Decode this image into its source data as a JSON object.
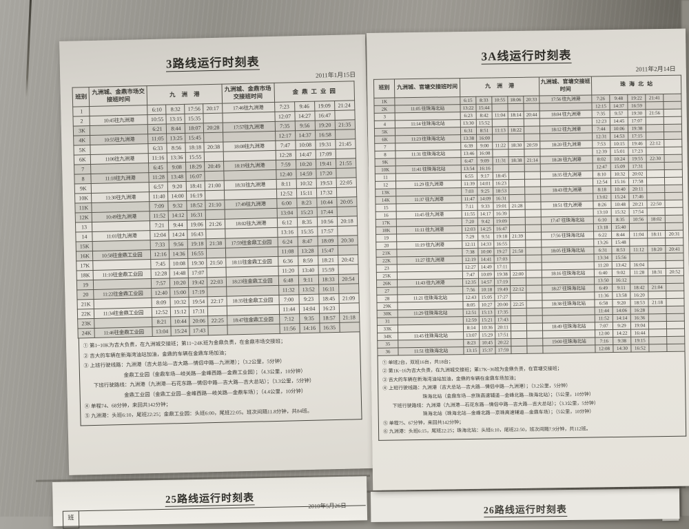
{
  "left_sheet": {
    "title": "3路线运行时刻表",
    "date": "2011年1月15日",
    "header": {
      "class_col": "班别",
      "transfer1": "九洲城、金鼎市场交接班时间",
      "group1": "九洲港",
      "transfer2": "九洲城、金鼎市场交接班时间",
      "group2": "金鼎工业园"
    },
    "rows": [
      [
        "1",
        "",
        "6:10",
        "8:32",
        "17:56",
        "20:17",
        "17:46往九洲港",
        "7:23",
        "9:46",
        "19:09",
        "21:24"
      ],
      [
        "2",
        "10:45往九洲港",
        "10:55",
        "13:15",
        "15:35",
        "",
        "",
        "12:07",
        "14:27",
        "16:47",
        ""
      ],
      [
        "3K",
        "",
        "6:21",
        "8:44",
        "18:07",
        "20:28",
        "17:57往九洲港",
        "7:35",
        "9:56",
        "19:20",
        "21:35"
      ],
      [
        "4K",
        "10:55往九洲港",
        "11:05",
        "13:25",
        "15:45",
        "",
        "",
        "12:17",
        "14:37",
        "16:58",
        ""
      ],
      [
        "5K",
        "",
        "6:33",
        "8:56",
        "18:18",
        "20:38",
        "18:08往九洲港",
        "7:47",
        "10:08",
        "19:31",
        "21:45"
      ],
      [
        "6K",
        "1106往九洲港",
        "11:16",
        "13:36",
        "15:55",
        "",
        "",
        "12:28",
        "14:47",
        "17:09",
        ""
      ],
      [
        "7",
        "",
        "6:45",
        "9:08",
        "18:29",
        "20:49",
        "18:19往九洲港",
        "7:59",
        "10:20",
        "19:41",
        "21:55"
      ],
      [
        "8",
        "11:18往九洲港",
        "11:28",
        "13:48",
        "16:07",
        "",
        "",
        "12:40",
        "14:59",
        "17:20",
        ""
      ],
      [
        "9K",
        "",
        "6:57",
        "9:20",
        "18:41",
        "21:00",
        "18:31往九洲港",
        "8:11",
        "10:32",
        "19:53",
        "22:05"
      ],
      [
        "10K",
        "11:30往九洲港",
        "11:40",
        "14:00",
        "16:19",
        "",
        "",
        "12:52",
        "15:11",
        "17:32",
        ""
      ],
      [
        "11K",
        "",
        "7:09",
        "9:32",
        "18:52",
        "21:10",
        "17:49往九洲港",
        "6:00",
        "8:23",
        "10:44",
        "20:05"
      ],
      [
        "12K",
        "10:49往九洲港",
        "11:52",
        "14:12",
        "16:31",
        "",
        "",
        "13:04",
        "15:23",
        "17:44",
        ""
      ],
      [
        "13",
        "",
        "7:21",
        "9:44",
        "19:06",
        "21:26",
        "18:02往九洲港",
        "6:12",
        "8:35",
        "10:56",
        "20:18"
      ],
      [
        "14",
        "11:01往九洲港",
        "12:04",
        "14:24",
        "16:43",
        "",
        "",
        "13:16",
        "15:35",
        "17:57",
        ""
      ],
      [
        "15K",
        "",
        "7:33",
        "9:56",
        "19:18",
        "21:38",
        "17:59往金鼎工业园",
        "6:24",
        "8:47",
        "18:09",
        "20:30"
      ],
      [
        "16K",
        "10:58往金鼎工业园",
        "12:16",
        "14:36",
        "16:55",
        "",
        "",
        "11:08",
        "13:28",
        "15:47",
        ""
      ],
      [
        "17K",
        "",
        "7:45",
        "10:08",
        "19:30",
        "21:50",
        "18:11往金鼎工业园",
        "6:36",
        "8:59",
        "18:21",
        "20:42"
      ],
      [
        "18K",
        "11:10往金鼎工业园",
        "12:28",
        "14:48",
        "17:07",
        "",
        "",
        "11:20",
        "13:40",
        "15:59",
        ""
      ],
      [
        "19",
        "",
        "7:57",
        "10:20",
        "19:42",
        "22:03",
        "18:23往金鼎工业园",
        "6:48",
        "9:11",
        "18:33",
        "20:54"
      ],
      [
        "20",
        "11:22往金鼎工业园",
        "12:40",
        "15:00",
        "17:19",
        "",
        "",
        "11:32",
        "13:52",
        "16:11",
        ""
      ],
      [
        "21K",
        "",
        "8:09",
        "10:32",
        "19:54",
        "22:17",
        "18:35往金鼎工业园",
        "7:00",
        "9:23",
        "18:45",
        "21:09"
      ],
      [
        "22K",
        "11:34往金鼎工业园",
        "12:52",
        "15:12",
        "17:31",
        "",
        "",
        "11:44",
        "14:04",
        "16:23",
        ""
      ],
      [
        "23K",
        "",
        "8:21",
        "10:44",
        "20:06",
        "22:25",
        "18:47往金鼎工业园",
        "7:12",
        "9:35",
        "18:57",
        "21:18"
      ],
      [
        "24K",
        "11:46往金鼎工业园",
        "13:04",
        "15:24",
        "17:43",
        "",
        "",
        "11:56",
        "14:16",
        "16:35",
        ""
      ]
    ],
    "notes": [
      {
        "indent": 0,
        "text": "① 第1~10K为吉大负责，在九洲城交接班；第11~24K班为金鼎负责，在金鼎市场交接班；"
      },
      {
        "indent": 0,
        "text": "② 吉大的车辆在新海湾油站加油，金鼎的车辆在金鼎车场加油；"
      },
      {
        "indent": 0,
        "text": "③ 上班行驶线路：九洲港（吉大总站—吉大路—情侣中路—九洲港）；（3.2公里，5分钟）"
      },
      {
        "indent": 2,
        "text": "金鼎工业园（金鼎车场—岐关路—金峰西路—金鼎工业园）；（4.3公里，10分钟）"
      },
      {
        "indent": 1,
        "text": "下班行驶路线：九洲港（九洲港—石花东路—情侣中路—吉大路—吉大总站）；（3.3公里，5分钟）"
      },
      {
        "indent": 2,
        "text": "金鼎工业园（金鼎工业园—金峰西路—岐关路—金鼎车场）；（4.4公里，10分钟）"
      },
      {
        "indent": 0,
        "text": "④ 单程74、68分钟，来回共142分钟；"
      },
      {
        "indent": 0,
        "text": "⑤ 九洲港：头班6:10，尾班22:25；金鼎工业园：头班6:00，尾班22:05。班次间隔11.8分钟，共84班。"
      }
    ]
  },
  "right_sheet": {
    "title": "3A线运行时刻表",
    "date": "2011年2月14日",
    "header": {
      "class_col": "班别",
      "transfer1": "九洲城、官塘交接班时间",
      "group1": "九洲港",
      "transfer2": "九洲城、官塘交接班时间",
      "group2": "珠海北站"
    },
    "rows": [
      [
        "1K",
        "",
        "6:15",
        "8:33",
        "10:55",
        "18:06",
        "20:33",
        "17:56 往九洲港",
        "7:26",
        "9:48",
        "19:22",
        "21:41",
        ""
      ],
      [
        "2K",
        "11:05 往珠海北站",
        "13:22",
        "15:44",
        "",
        "",
        "",
        "",
        "12:15",
        "14:37",
        "16:59",
        "",
        ""
      ],
      [
        "3",
        "",
        "6:23",
        "8:42",
        "11:04",
        "18:14",
        "20:44",
        "18:04 往九洲港",
        "7:35",
        "9:57",
        "19:30",
        "21:56",
        ""
      ],
      [
        "4",
        "11:14 往珠海北站",
        "13:30",
        "15:52",
        "",
        "",
        "",
        "",
        "12:23",
        "14:45",
        "17:07",
        "",
        ""
      ],
      [
        "5K",
        "",
        "6:31",
        "8:51",
        "11:13",
        "18:22",
        "",
        "18:12 往九洲港",
        "7:44",
        "10:06",
        "19:38",
        "",
        ""
      ],
      [
        "6K",
        "11:23 往珠海北站",
        "13:38",
        "16:00",
        "",
        "",
        "",
        "",
        "12:31",
        "14:53",
        "17:15",
        "",
        ""
      ],
      [
        "7",
        "",
        "6:39",
        "9:00",
        "11:22",
        "18:30",
        "20:59",
        "18:20 往九洲港",
        "7:53",
        "10:15",
        "19:46",
        "22:12",
        ""
      ],
      [
        "8",
        "11:31 往珠海北站",
        "13:46",
        "16:08",
        "",
        "",
        "",
        "",
        "12:39",
        "15:01",
        "17:23",
        "",
        ""
      ],
      [
        "9K",
        "",
        "6:47",
        "9:09",
        "11:31",
        "18:38",
        "21:14",
        "18:28 往九洲港",
        "8:02",
        "10:24",
        "19:55",
        "22:30",
        ""
      ],
      [
        "10K",
        "11:41 往珠海北站",
        "13:54",
        "16:16",
        "",
        "",
        "",
        "",
        "12:47",
        "15:09",
        "17:31",
        "",
        ""
      ],
      [
        "11",
        "",
        "6:55",
        "9:17",
        "18:45",
        "",
        "",
        "18:35 往九洲港",
        "8:10",
        "10:32",
        "20:02",
        "",
        ""
      ],
      [
        "12",
        "11:29 往九洲港",
        "11:39",
        "14:01",
        "16:23",
        "",
        "",
        "",
        "12:54",
        "15:16",
        "17:58",
        "",
        ""
      ],
      [
        "13K",
        "",
        "7:03",
        "9:25",
        "18:53",
        "",
        "",
        "18:43 往九洲港",
        "8:18",
        "10:40",
        "20:11",
        "",
        ""
      ],
      [
        "14K",
        "11:37 往九洲港",
        "11:47",
        "14:09",
        "16:31",
        "",
        "",
        "",
        "13:02",
        "15:24",
        "17:46",
        "",
        ""
      ],
      [
        "15",
        "",
        "7:11",
        "9:33",
        "19:01",
        "21:28",
        "",
        "18:51 往九洲港",
        "8:26",
        "10:48",
        "20:21",
        "22:50",
        ""
      ],
      [
        "16",
        "11:45 往九洲港",
        "11:55",
        "14:17",
        "16:39",
        "",
        "",
        "",
        "13:10",
        "15:32",
        "17:54",
        "",
        ""
      ],
      [
        "17K",
        "",
        "7:20",
        "9:42",
        "19:09",
        "",
        "",
        "17:47 往珠海北站",
        "6:10",
        "8:35",
        "10:56",
        "18:02",
        ""
      ],
      [
        "18K",
        "11:11 往九洲港",
        "12:03",
        "14:25",
        "16:47",
        "",
        "",
        "",
        "13:18",
        "15:40",
        "",
        "",
        ""
      ],
      [
        "19",
        "",
        "7:29",
        "9:51",
        "19:18",
        "21:39",
        "",
        "17:56 往珠海北站",
        "6:22",
        "8:44",
        "11:04",
        "18:11",
        "20:31"
      ],
      [
        "20",
        "11:19 往九洲港",
        "12:11",
        "14:33",
        "16:55",
        "",
        "",
        "",
        "13:26",
        "15:48",
        "",
        "",
        ""
      ],
      [
        "21K",
        "",
        "7:38",
        "10:00",
        "19:27",
        "21:50",
        "",
        "18:05 往珠海北站",
        "6:31",
        "8:53",
        "11:12",
        "18:20",
        "20:41"
      ],
      [
        "22K",
        "11:27 往九洲港",
        "12:19",
        "14:41",
        "17:03",
        "",
        "",
        "",
        "13:34",
        "15:56",
        "",
        "",
        ""
      ],
      [
        "23",
        "",
        "12:27",
        "14:49",
        "17:11",
        "",
        "",
        "",
        "11:20",
        "13:42",
        "16:04",
        "",
        ""
      ],
      [
        "25K",
        "",
        "7:47",
        "10:09",
        "19:38",
        "22:00",
        "",
        "18:16 往珠海北站",
        "6:40",
        "9:02",
        "11:28",
        "18:31",
        "20:52"
      ],
      [
        "26K",
        "11:43 往九洲港",
        "12:35",
        "14:57",
        "17:19",
        "",
        "",
        "",
        "13:50",
        "16:12",
        "",
        "",
        ""
      ],
      [
        "27",
        "",
        "7:56",
        "10:18",
        "19:49",
        "22:12",
        "",
        "18:27 往珠海北站",
        "6:49",
        "9:11",
        "18:42",
        "21:04",
        ""
      ],
      [
        "28",
        "11:21 往珠海北站",
        "12:43",
        "15:05",
        "17:27",
        "",
        "",
        "",
        "11:36",
        "13:58",
        "16:20",
        "",
        ""
      ],
      [
        "29K",
        "",
        "8:05",
        "10:27",
        "20:00",
        "22:25",
        "",
        "18:38 往珠海北站",
        "6:58",
        "9:20",
        "18:53",
        "21:18",
        ""
      ],
      [
        "30K",
        "11:29 往珠海北站",
        "12:51",
        "15:13",
        "17:35",
        "",
        "",
        "",
        "11:44",
        "14:06",
        "16:28",
        "",
        ""
      ],
      [
        "31",
        "",
        "12:59",
        "15:21",
        "17:43",
        "",
        "",
        "",
        "11:52",
        "14:14",
        "16:36",
        "",
        ""
      ],
      [
        "33K",
        "",
        "8:14",
        "10:36",
        "20:11",
        "",
        "",
        "18:49 往珠海北站",
        "7:07",
        "9:29",
        "19:04",
        "",
        ""
      ],
      [
        "34K",
        "11:45 往珠海北站",
        "13:07",
        "15:29",
        "17:51",
        "",
        "",
        "",
        "12:00",
        "14:22",
        "16:44",
        "",
        ""
      ],
      [
        "35",
        "",
        "8:23",
        "10:45",
        "20:22",
        "",
        "",
        "19:00 往珠海北站",
        "7:16",
        "9:38",
        "19:15",
        "",
        ""
      ],
      [
        "36",
        "11:51 往珠海北站",
        "13:15",
        "15:37",
        "17:59",
        "",
        "",
        "",
        "12:08",
        "14:30",
        "16:52",
        "",
        ""
      ]
    ],
    "notes": [
      {
        "indent": 0,
        "text": "① 单班2台，双班16台，共18台；"
      },
      {
        "indent": 0,
        "text": "② 第1K~16为吉大负责，在九洲城交接班；第17K~36班为金鼎负责，在官塘交接班；"
      },
      {
        "indent": 0,
        "text": "③ 吉大的车辆在新海湾油站加油，金鼎的车辆在金鼎车场加油；"
      },
      {
        "indent": 0,
        "text": "④ 上班行驶线路：九洲港（吉大总站—吉大路—情侣中路—九洲港）；（3.2公里，5分钟）"
      },
      {
        "indent": 2,
        "text": "珠海北站（金鼎车场—京珠高速辅道—金峰北路—珠海北站）；（5公里，10分钟）"
      },
      {
        "indent": 1,
        "text": "下班行驶路线：九洲港（九洲港—石花东路—情侣中路—吉大路—吉大总站）；（3.3公里，5分钟）"
      },
      {
        "indent": 2,
        "text": "珠海北站（珠海北站—金峰北路—京珠高速辅道—金鼎车场）；（5公里，10分钟）"
      },
      {
        "indent": 0,
        "text": "⑤ 单程75、67分钟，来回共142分钟；"
      },
      {
        "indent": 0,
        "text": "⑥ 九洲港：头班6:15，尾班22:25；珠海北站：头班6:10，尾班22:50，班次间隔7.9分钟，共112班。"
      }
    ]
  },
  "bottom_left_sheet": {
    "title": "25路线运行时刻表",
    "date": "2010年5月26日",
    "corner_cell": "班"
  },
  "bottom_right_sheet": {
    "title": "26路线运行时刻表"
  },
  "colors": {
    "wall": "#918f88",
    "paper": "#e9e6df",
    "table_border": "#45443d",
    "ink": "#3b3a35"
  }
}
